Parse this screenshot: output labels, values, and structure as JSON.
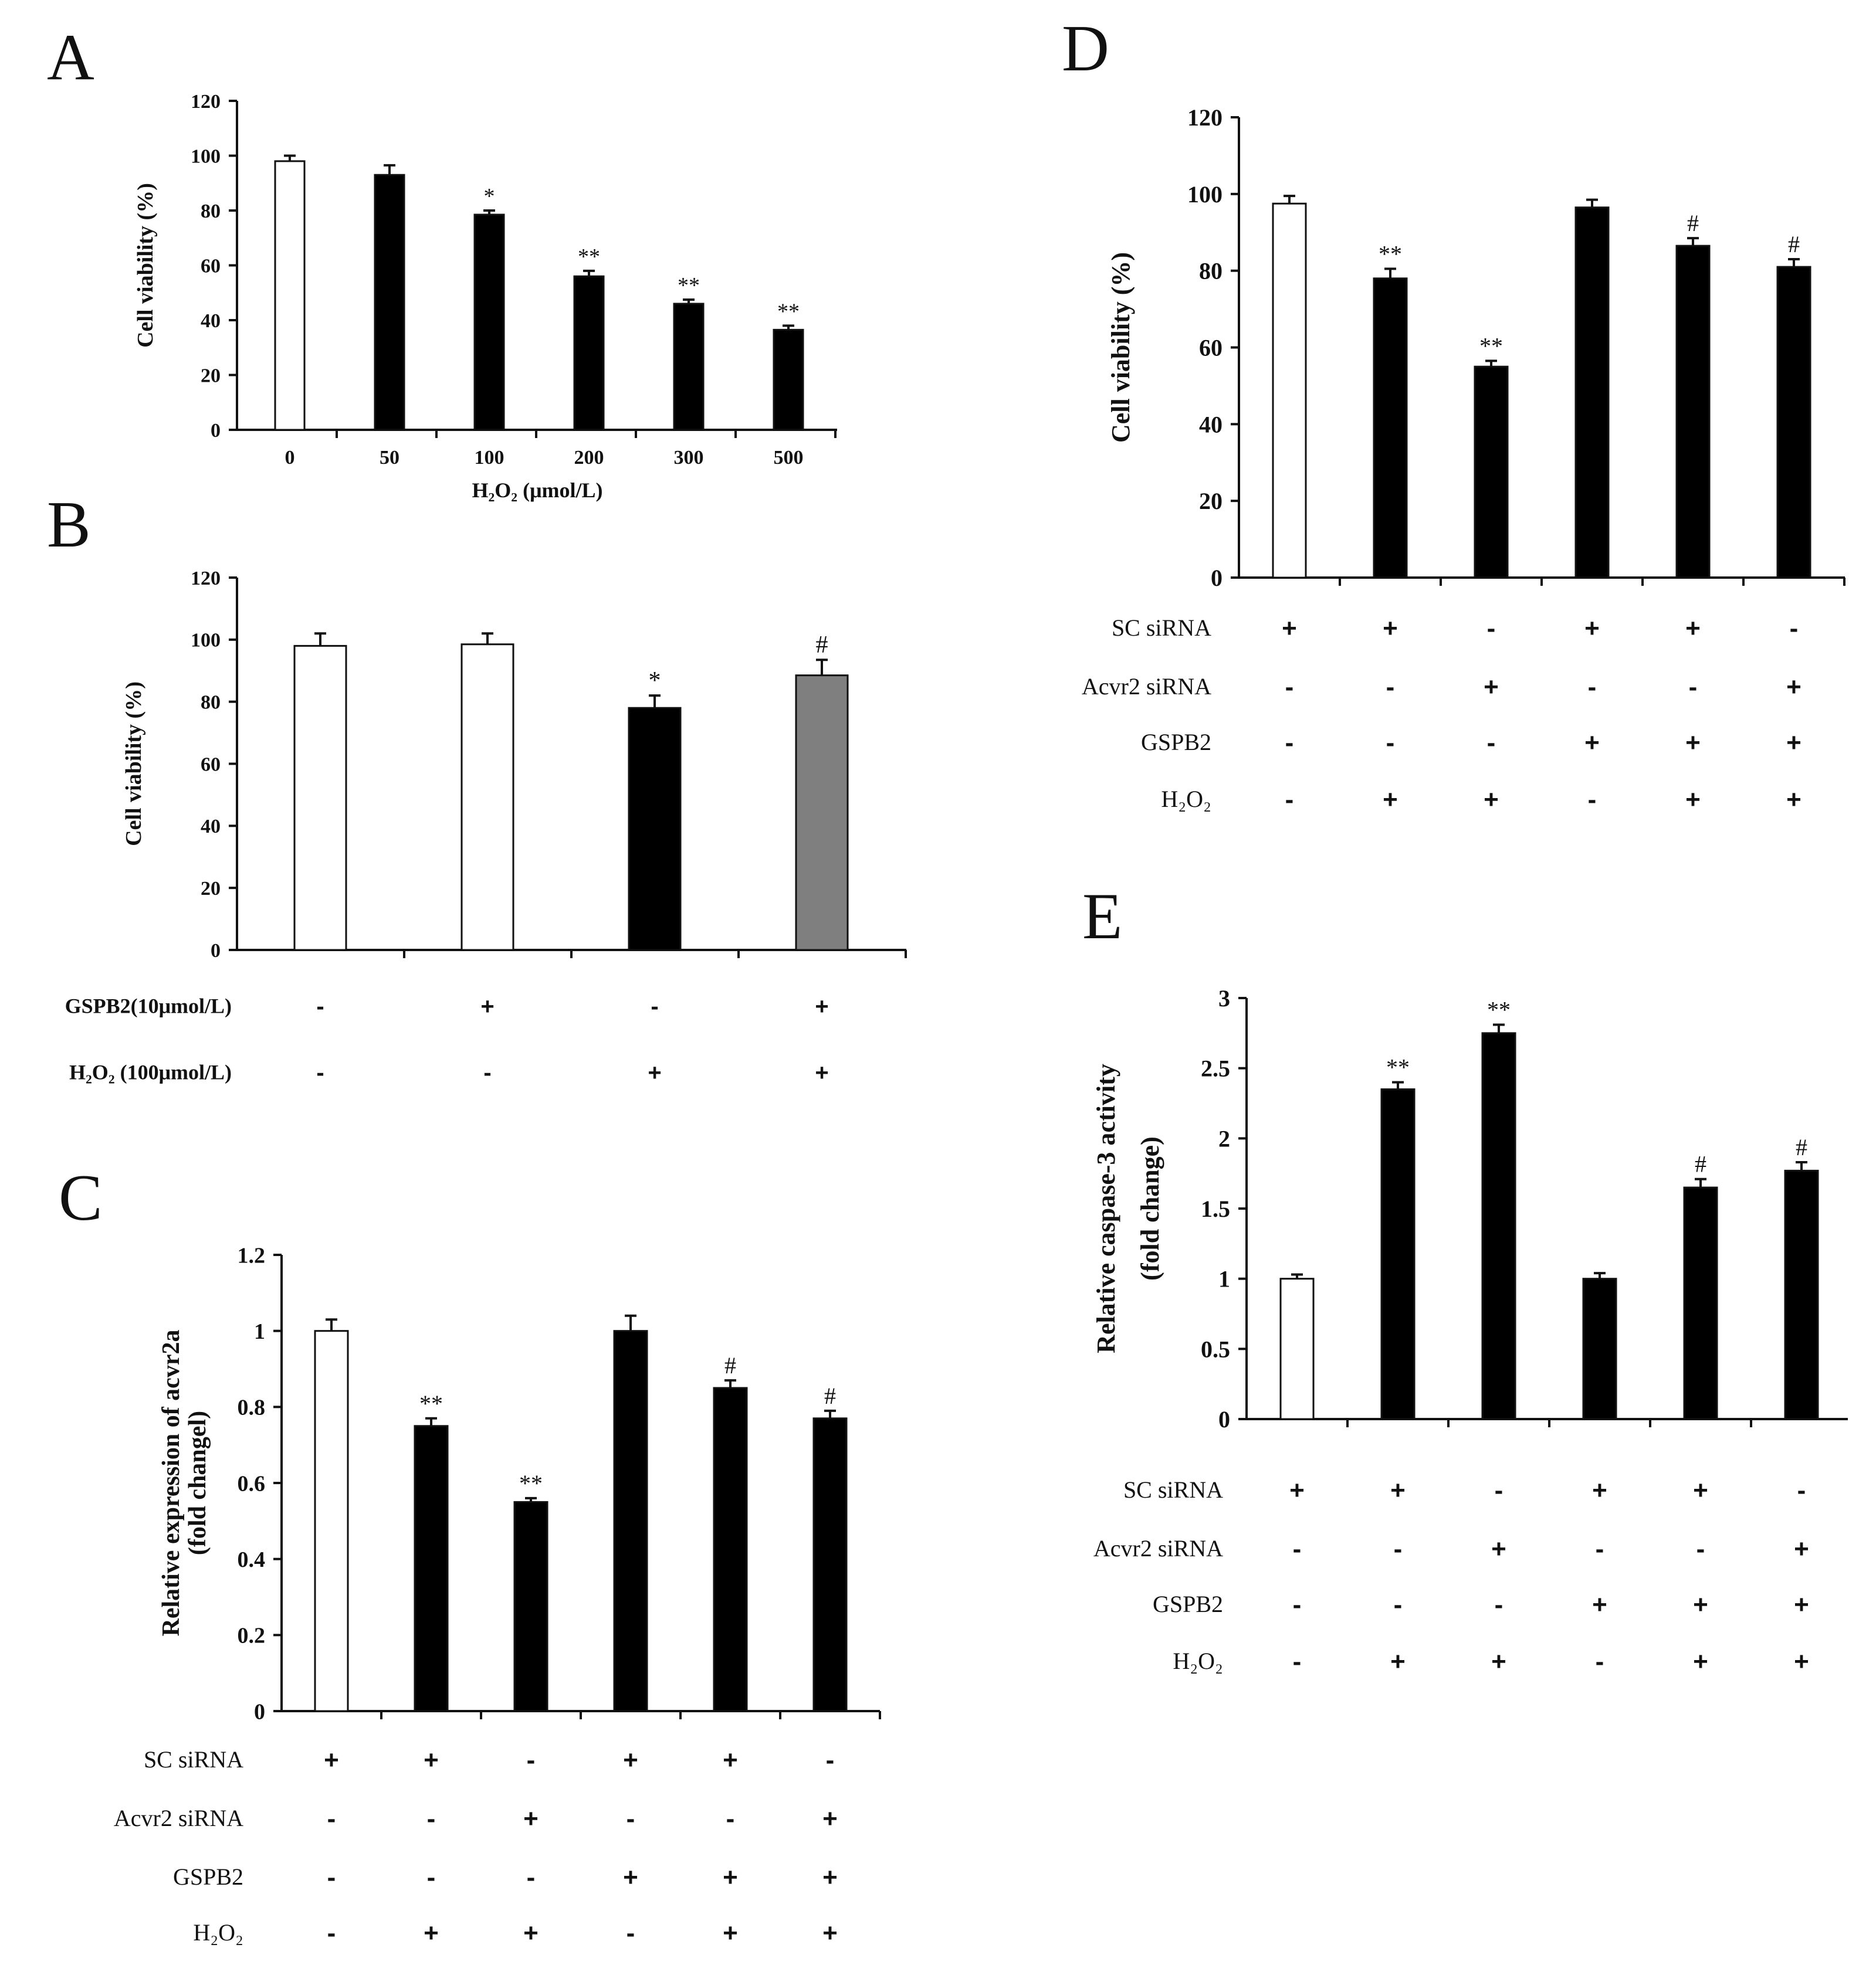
{
  "chart_data": [
    {
      "panel": "A",
      "type": "bar",
      "ylabel": "Cell viability (%)",
      "xlabel": "H₂O₂ (μmol/L)",
      "ylim": [
        0,
        120
      ],
      "yticks": [
        "0",
        "20",
        "40",
        "60",
        "80",
        "100",
        "120"
      ],
      "categories": [
        "0",
        "50",
        "100",
        "200",
        "300",
        "500"
      ],
      "values": [
        98,
        93,
        78.5,
        56,
        46,
        36.5
      ],
      "errors": [
        2,
        3.5,
        1.5,
        2,
        1.5,
        1.5
      ],
      "fills": [
        "#ffffff",
        "#000000",
        "#000000",
        "#000000",
        "#000000",
        "#000000"
      ],
      "significance": [
        "",
        "",
        "*",
        "**",
        "**",
        "**"
      ]
    },
    {
      "panel": "B",
      "type": "bar",
      "ylabel": "Cell viability (%)",
      "ylim": [
        0,
        120
      ],
      "yticks": [
        "0",
        "20",
        "40",
        "60",
        "80",
        "100",
        "120"
      ],
      "values": [
        98,
        98.5,
        78,
        88.5
      ],
      "errors": [
        4,
        3.5,
        4,
        5
      ],
      "fills": [
        "#ffffff",
        "#ffffff",
        "#000000",
        "#7f7f7f"
      ],
      "significance": [
        "",
        "",
        "*",
        "#"
      ],
      "conditions": [
        {
          "label": "GSPB2(10μmol/L)",
          "symbols": [
            "-",
            "+",
            "-",
            "+"
          ]
        },
        {
          "label": "H₂O₂ (100μmol/L)",
          "symbols": [
            "-",
            "-",
            "+",
            "+"
          ]
        }
      ]
    },
    {
      "panel": "C",
      "type": "bar",
      "ylabel": "Relative expression of acvr2a",
      "ylabel2": "(fold changel)",
      "ylim": [
        0,
        1.2
      ],
      "yticks": [
        "0",
        "0.2",
        "0.4",
        "0.6",
        "0.8",
        "1",
        "1.2"
      ],
      "values": [
        1.0,
        0.75,
        0.55,
        1.0,
        0.85,
        0.77
      ],
      "errors": [
        0.03,
        0.02,
        0.01,
        0.04,
        0.02,
        0.02
      ],
      "fills": [
        "#ffffff",
        "#000000",
        "#000000",
        "#000000",
        "#000000",
        "#000000"
      ],
      "significance": [
        "",
        "**",
        "**",
        "",
        "#",
        "#"
      ],
      "conditions": [
        {
          "label": "SC siRNA",
          "symbols": [
            "+",
            "+",
            "-",
            "+",
            "+",
            "-"
          ]
        },
        {
          "label": "Acvr2 siRNA",
          "symbols": [
            "-",
            "-",
            "+",
            "-",
            "-",
            "+"
          ]
        },
        {
          "label": "GSPB2",
          "symbols": [
            "-",
            "-",
            "-",
            "+",
            "+",
            "+"
          ]
        },
        {
          "label": "H₂O₂",
          "symbols": [
            "-",
            "+",
            "+",
            "-",
            "+",
            "+"
          ]
        }
      ]
    },
    {
      "panel": "D",
      "type": "bar",
      "ylabel": "Cell viability (%)",
      "ylim": [
        0,
        120
      ],
      "yticks": [
        "0",
        "20",
        "40",
        "60",
        "80",
        "100",
        "120"
      ],
      "values": [
        97.5,
        78,
        55,
        96.5,
        86.5,
        81
      ],
      "errors": [
        2,
        2.5,
        1.5,
        2,
        2,
        2
      ],
      "fills": [
        "#ffffff",
        "#000000",
        "#000000",
        "#000000",
        "#000000",
        "#000000"
      ],
      "significance": [
        "",
        "**",
        "**",
        "",
        "#",
        "#"
      ],
      "conditions": [
        {
          "label": "SC siRNA",
          "symbols": [
            "+",
            "+",
            "-",
            "+",
            "+",
            "-"
          ]
        },
        {
          "label": "Acvr2 siRNA",
          "symbols": [
            "-",
            "-",
            "+",
            "-",
            "-",
            "+"
          ]
        },
        {
          "label": "GSPB2",
          "symbols": [
            "-",
            "-",
            "-",
            "+",
            "+",
            "+"
          ]
        },
        {
          "label": "H₂O₂",
          "symbols": [
            "-",
            "+",
            "+",
            "-",
            "+",
            "+"
          ]
        }
      ]
    },
    {
      "panel": "E",
      "type": "bar",
      "ylabel": "Relative caspase-3 activity",
      "ylabel2": "(fold change)",
      "ylim": [
        0,
        3
      ],
      "yticks": [
        "0",
        "0.5",
        "1",
        "1.5",
        "2",
        "2.5",
        "3"
      ],
      "values": [
        1.0,
        2.35,
        2.75,
        1.0,
        1.65,
        1.77
      ],
      "errors": [
        0.03,
        0.05,
        0.06,
        0.04,
        0.06,
        0.06
      ],
      "fills": [
        "#ffffff",
        "#000000",
        "#000000",
        "#000000",
        "#000000",
        "#000000"
      ],
      "significance": [
        "",
        "**",
        "**",
        "",
        "#",
        "#"
      ],
      "conditions": [
        {
          "label": "SC siRNA",
          "symbols": [
            "+",
            "+",
            "-",
            "+",
            "+",
            "-"
          ]
        },
        {
          "label": "Acvr2 siRNA",
          "symbols": [
            "-",
            "-",
            "+",
            "-",
            "-",
            "+"
          ]
        },
        {
          "label": "GSPB2",
          "symbols": [
            "-",
            "-",
            "-",
            "+",
            "+",
            "+"
          ]
        },
        {
          "label": "H₂O₂",
          "symbols": [
            "-",
            "+",
            "+",
            "-",
            "+",
            "+"
          ]
        }
      ]
    }
  ]
}
